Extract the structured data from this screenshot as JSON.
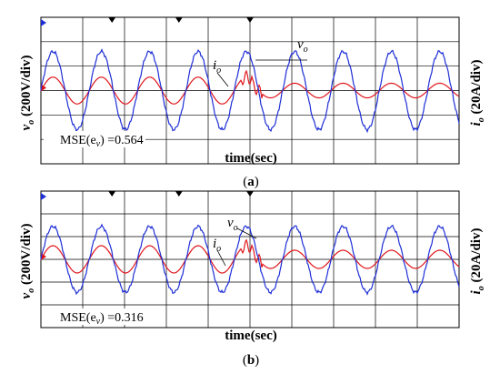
{
  "colors": {
    "voltage": "#1f2fd6",
    "current": "#e0161b",
    "grid": "#000000",
    "background": "#ffffff"
  },
  "chart_data": [
    {
      "type": "line",
      "panel_label": "(a)",
      "xlabel": "time(sec)",
      "ylabel_left": {
        "sym": "v",
        "sub": "o",
        "unit": " (200V/div)"
      },
      "ylabel_right": {
        "sym": "i",
        "sub": "o",
        "unit": " (20A/div)"
      },
      "annotation_v": {
        "sym": "v",
        "sub": "o"
      },
      "annotation_i": {
        "sym": "i",
        "sub": "o"
      },
      "mse_text": "MSE(e",
      "mse_sub": "v",
      "mse_value": ") =0.564",
      "x_divisions": 10,
      "y_divisions": 6,
      "grid": true,
      "series": [
        {
          "signal": "vo",
          "amplitude_div": 1.6,
          "cycles_per_div": 0.865,
          "phase_deg": 0
        },
        {
          "signal": "io",
          "amplitude_div": 0.55,
          "cycles_per_div": 0.865,
          "phase_deg": 0,
          "after_step_amplitude_div": 0.3
        }
      ],
      "step_at_div": 5.05
    },
    {
      "type": "line",
      "panel_label": "(b)",
      "xlabel": "time(sec)",
      "ylabel_left": {
        "sym": "v",
        "sub": "o",
        "unit": " (200V/div)"
      },
      "ylabel_right": {
        "sym": "i",
        "sub": "o",
        "unit": " (20A/div)"
      },
      "annotation_v": {
        "sym": "v",
        "sub": "o"
      },
      "annotation_i": {
        "sym": "i",
        "sub": "o"
      },
      "mse_text": "MSE(e",
      "mse_sub": "v",
      "mse_value": ") =0.316",
      "x_divisions": 10,
      "y_divisions": 6,
      "grid": true,
      "series": [
        {
          "signal": "vo",
          "amplitude_div": 1.45,
          "cycles_per_div": 0.865,
          "phase_deg": 0
        },
        {
          "signal": "io",
          "amplitude_div": 0.6,
          "cycles_per_div": 0.865,
          "phase_deg": 0,
          "after_step_amplitude_div": 0.4
        }
      ],
      "step_at_div": 5.05
    }
  ]
}
